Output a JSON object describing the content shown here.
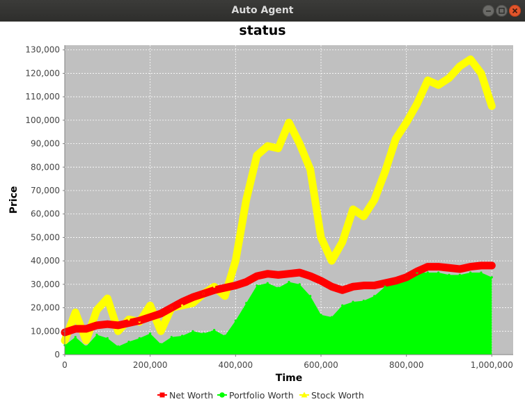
{
  "window": {
    "title": "Auto Agent",
    "controls": [
      "minimize-icon",
      "maximize-icon",
      "close-icon"
    ]
  },
  "colors": {
    "plot_background": "#c0c0c0",
    "net_worth": "#ff0000",
    "portfolio_worth": "#00ff00",
    "stock_worth": "#ffff00",
    "close_button": "#e2552b"
  },
  "chart_data": {
    "type": "line",
    "title": "status",
    "xlabel": "Time",
    "ylabel": "Price",
    "xlim": [
      0,
      1050000
    ],
    "ylim": [
      0,
      132000
    ],
    "grid": true,
    "legend_position": "bottom",
    "x_ticks": [
      0,
      200000,
      400000,
      600000,
      800000,
      1000000
    ],
    "x_tick_labels": [
      "0",
      "200,000",
      "400,000",
      "600,000",
      "800,000",
      "1,000,000"
    ],
    "y_ticks": [
      0,
      10000,
      20000,
      30000,
      40000,
      50000,
      60000,
      70000,
      80000,
      90000,
      100000,
      110000,
      120000,
      130000
    ],
    "y_tick_labels": [
      "0",
      "10,000",
      "20,000",
      "30,000",
      "40,000",
      "50,000",
      "60,000",
      "70,000",
      "80,000",
      "90,000",
      "100,000",
      "110,000",
      "120,000",
      "130,000"
    ],
    "x": [
      0,
      25000,
      50000,
      75000,
      100000,
      125000,
      150000,
      175000,
      200000,
      225000,
      250000,
      275000,
      300000,
      325000,
      350000,
      375000,
      400000,
      425000,
      450000,
      475000,
      500000,
      525000,
      550000,
      575000,
      600000,
      625000,
      650000,
      675000,
      700000,
      725000,
      750000,
      775000,
      800000,
      825000,
      850000,
      875000,
      900000,
      925000,
      950000,
      975000,
      1000000
    ],
    "series": [
      {
        "name": "Net Worth",
        "values": [
          9500,
          11000,
          11000,
          12500,
          13000,
          12500,
          13500,
          14500,
          16000,
          17500,
          20000,
          22500,
          24500,
          26000,
          27500,
          28500,
          29500,
          31000,
          33500,
          34500,
          34000,
          34500,
          35000,
          33500,
          31500,
          29000,
          27500,
          29000,
          29500,
          29500,
          30500,
          31500,
          33000,
          35500,
          37500,
          37500,
          37000,
          36500,
          37500,
          38000,
          38000
        ]
      },
      {
        "name": "Portfolio Worth",
        "values": [
          4000,
          7500,
          3500,
          8500,
          7000,
          3500,
          5500,
          7000,
          9000,
          4500,
          7500,
          8000,
          10000,
          9000,
          10500,
          8000,
          14500,
          22000,
          29500,
          30500,
          28500,
          31000,
          30000,
          25000,
          17000,
          16000,
          21000,
          22500,
          23000,
          25000,
          29000,
          31500,
          33000,
          35000,
          35000,
          35000,
          34000,
          34000,
          35000,
          35000,
          33000
        ]
      },
      {
        "name": "Stock Worth",
        "values": [
          6000,
          18000,
          6000,
          19000,
          24000,
          10000,
          15000,
          14000,
          21000,
          10000,
          20000,
          21000,
          22000,
          26000,
          29000,
          25000,
          40000,
          66000,
          85000,
          89000,
          88000,
          99000,
          90000,
          79000,
          50000,
          40000,
          48000,
          62000,
          59000,
          66000,
          78000,
          92000,
          99000,
          107000,
          117000,
          115000,
          118000,
          123000,
          126000,
          120000,
          106000
        ]
      }
    ]
  }
}
